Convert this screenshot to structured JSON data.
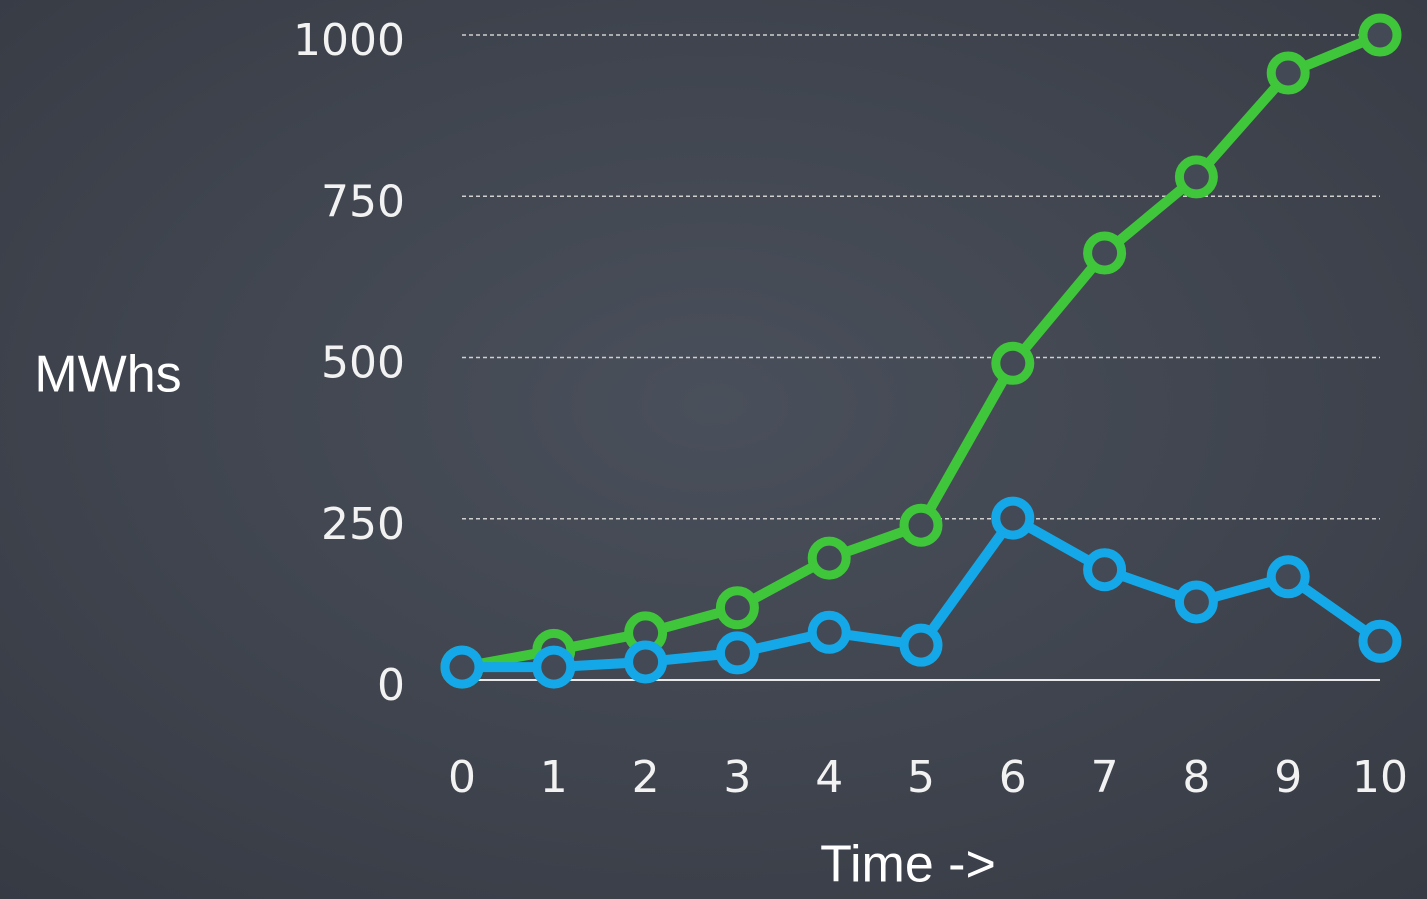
{
  "chart_data": {
    "type": "line",
    "x_label": "MWhs",
    "xlabel": "Time ->",
    "x": [
      0,
      1,
      2,
      3,
      4,
      5,
      6,
      7,
      8,
      9,
      10
    ],
    "series": [
      {
        "color": "#3fc63a",
        "values": [
          20,
          46,
          73,
          112,
          189,
          240,
          491,
          662,
          780,
          941,
          1000
        ]
      },
      {
        "color": "#14a8e8",
        "values": [
          20,
          20,
          28,
          42,
          74,
          54,
          251,
          171,
          121,
          160,
          60
        ]
      }
    ],
    "xlim": [
      0,
      10
    ],
    "xticks": [
      0,
      1,
      2,
      3,
      4,
      5,
      6,
      7,
      8,
      9,
      10
    ],
    "ylim": [
      0,
      1000
    ],
    "yticks": [
      0,
      250,
      500,
      750,
      1000
    ],
    "grid": true
  }
}
